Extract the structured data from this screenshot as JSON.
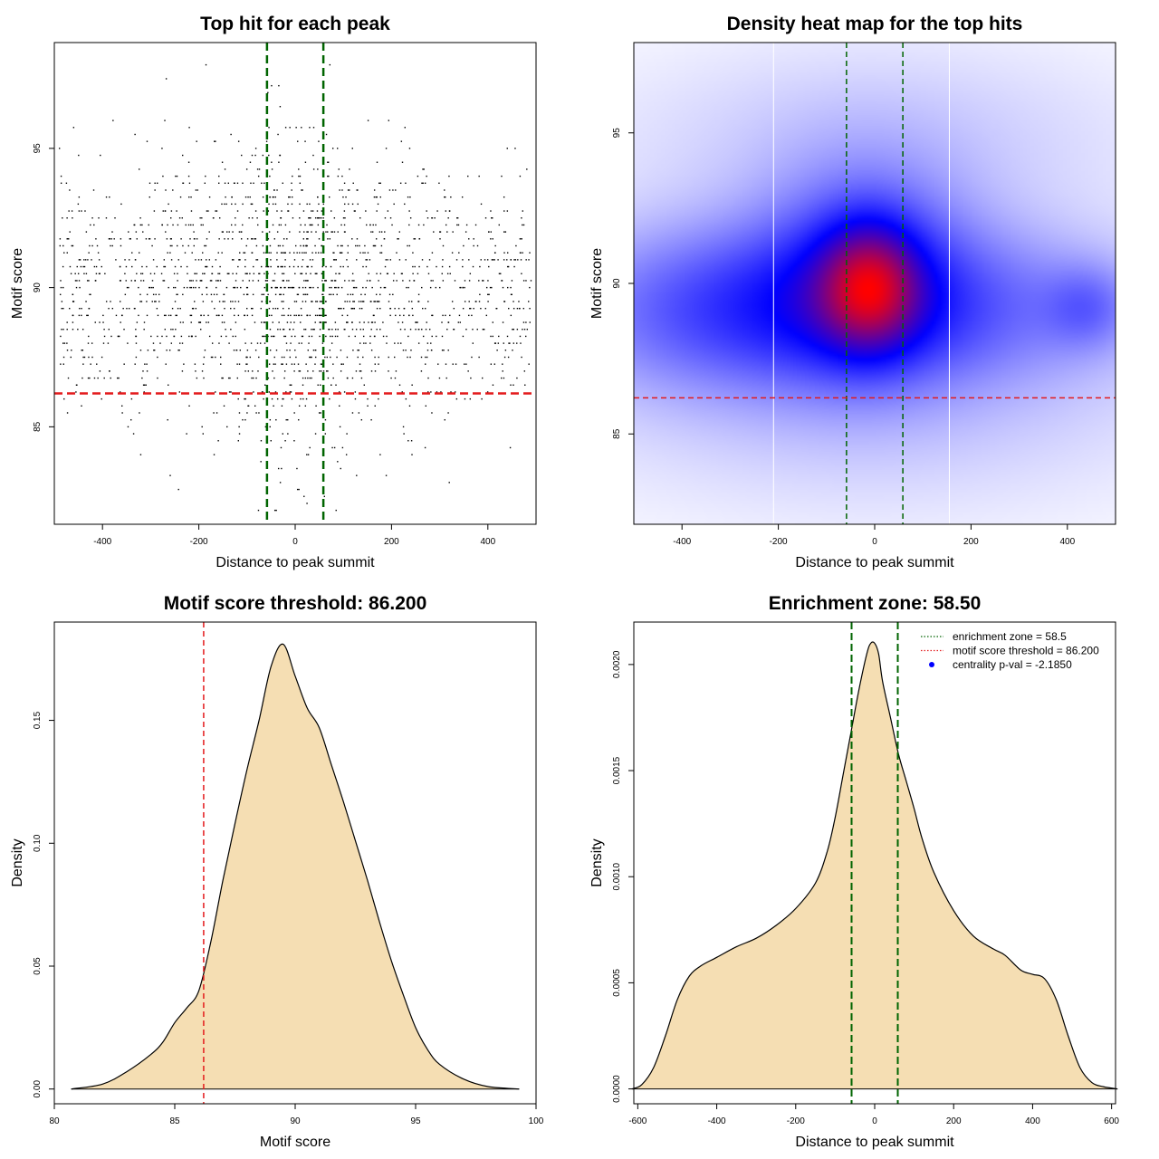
{
  "chart_data": [
    {
      "type": "scatter",
      "title": "Top hit for each peak",
      "xlabel": "Distance to peak summit",
      "ylabel": "Motif score",
      "xlim": [
        -500,
        500
      ],
      "ylim": [
        81.5,
        98.8
      ],
      "xticks": [
        "-400",
        "-200",
        "0",
        "200",
        "400"
      ],
      "xtick_values": [
        -400,
        -200,
        0,
        200,
        400
      ],
      "yticks": [
        "85",
        "90",
        "95"
      ],
      "ytick_values": [
        85,
        90,
        95
      ],
      "n_points": 2000,
      "point_distribution": {
        "x_min": -490,
        "x_max": 490,
        "y_center": 89.8,
        "y_sd": 2.4,
        "y_min": 82,
        "y_max": 98
      },
      "vlines": [
        -58.5,
        58.5
      ],
      "vline_color": "#006400",
      "hline": 86.2,
      "hline_color": "#e31a1c",
      "grid": false
    },
    {
      "type": "heatmap",
      "title": "Density heat map for the top hits",
      "xlabel": "Distance to peak summit",
      "ylabel": "Motif score",
      "xlim": [
        -500,
        500
      ],
      "ylim": [
        82,
        98
      ],
      "xticks": [
        "-400",
        "-200",
        "0",
        "200",
        "400"
      ],
      "xtick_values": [
        -400,
        -200,
        0,
        200,
        400
      ],
      "yticks": [
        "85",
        "90",
        "95"
      ],
      "ytick_values": [
        85,
        90,
        95
      ],
      "peak": {
        "x": -10,
        "y": 89.9
      },
      "vlines": [
        -58.5,
        58.5
      ],
      "vline_color": "#006400",
      "hline": 86.2,
      "hline_color": "#e31a1c",
      "colors": {
        "low": "#ffffff",
        "mid": "#0000ff",
        "high": "#ff0000"
      }
    },
    {
      "type": "area",
      "title": "Motif score threshold: 86.200",
      "xlabel": "Motif score",
      "ylabel": "Density",
      "xlim": [
        80,
        100
      ],
      "ylim": [
        -0.006,
        0.19
      ],
      "xticks": [
        "80",
        "85",
        "90",
        "95",
        "100"
      ],
      "xtick_values": [
        80,
        85,
        90,
        95,
        100
      ],
      "yticks": [
        "0.00",
        "0.05",
        "0.10",
        "0.15"
      ],
      "ytick_values": [
        0,
        0.05,
        0.1,
        0.15
      ],
      "x": [
        80.7,
        82,
        83,
        84,
        84.5,
        85,
        85.5,
        86,
        86.5,
        87,
        87.5,
        88,
        88.5,
        89,
        89.5,
        90,
        90.5,
        91,
        91.5,
        92,
        92.5,
        93,
        93.5,
        94,
        94.5,
        95,
        95.5,
        96,
        97,
        98,
        99.3
      ],
      "y": [
        0.0,
        0.002,
        0.007,
        0.014,
        0.019,
        0.027,
        0.033,
        0.04,
        0.06,
        0.085,
        0.108,
        0.13,
        0.15,
        0.172,
        0.181,
        0.168,
        0.155,
        0.147,
        0.132,
        0.117,
        0.101,
        0.085,
        0.068,
        0.052,
        0.038,
        0.025,
        0.016,
        0.01,
        0.004,
        0.001,
        0.0
      ],
      "fill_color": "#f5deb3",
      "vline": 86.2,
      "vline_color": "#e31a1c"
    },
    {
      "type": "area",
      "title": "Enrichment zone: 58.50",
      "xlabel": "Distance to peak summit",
      "ylabel": "Density",
      "xlim": [
        -610,
        610
      ],
      "ylim": [
        -7e-05,
        0.0022
      ],
      "xticks": [
        "-600",
        "-400",
        "-200",
        "0",
        "200",
        "400",
        "600"
      ],
      "xtick_values": [
        -600,
        -400,
        -200,
        0,
        200,
        400,
        600
      ],
      "yticks": [
        "0.0000",
        "0.0005",
        "0.0010",
        "0.0015",
        "0.0020"
      ],
      "ytick_values": [
        0,
        0.0005,
        0.001,
        0.0015,
        0.002
      ],
      "x": [
        -615,
        -590,
        -560,
        -530,
        -500,
        -470,
        -440,
        -400,
        -350,
        -300,
        -250,
        -200,
        -150,
        -120,
        -100,
        -80,
        -60,
        -40,
        -20,
        -10,
        0,
        10,
        20,
        40,
        60,
        80,
        100,
        120,
        150,
        200,
        250,
        300,
        330,
        370,
        400,
        430,
        460,
        490,
        520,
        550,
        580,
        615
      ],
      "y": [
        0.0,
        2e-05,
        0.0001,
        0.00025,
        0.00042,
        0.00053,
        0.00058,
        0.00062,
        0.00067,
        0.00071,
        0.00077,
        0.00085,
        0.00097,
        0.00112,
        0.00128,
        0.00148,
        0.00168,
        0.00188,
        0.00205,
        0.0021,
        0.0021,
        0.00205,
        0.00192,
        0.00175,
        0.00158,
        0.00145,
        0.00132,
        0.00118,
        0.00102,
        0.00084,
        0.00072,
        0.00066,
        0.00063,
        0.00056,
        0.00054,
        0.00052,
        0.00042,
        0.00025,
        0.0001,
        3e-05,
        1e-05,
        0.0
      ],
      "fill_color": "#f5deb3",
      "vlines": [
        -58.5,
        58.5
      ],
      "vline_color": "#006400",
      "legend": {
        "position": "top-right",
        "entries": [
          {
            "label": "enrichment zone = 58.5",
            "style": "dotted",
            "color": "#006400"
          },
          {
            "label": "motif score threshold = 86.200",
            "style": "dotted",
            "color": "#e31a1c"
          },
          {
            "label": "centrality p-val = -2.1850",
            "style": "point",
            "color": "#0000ff"
          }
        ]
      }
    }
  ]
}
